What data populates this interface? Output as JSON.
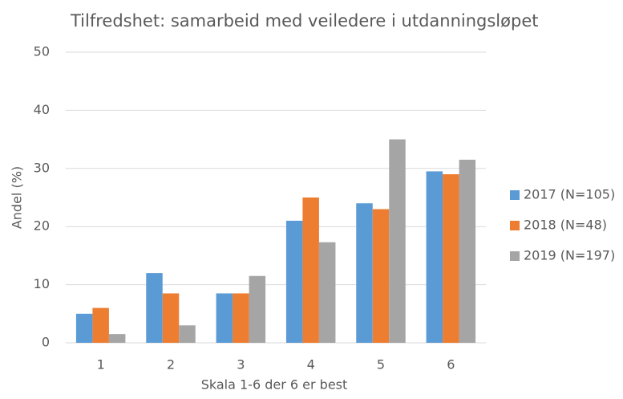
{
  "chart_data": {
    "type": "bar",
    "title": "Tilfredshet: samarbeid med veiledere i utdanningsløpet",
    "x_label": "Skala 1-6 der 6 er best",
    "y_label": "Andel (%)",
    "categories": [
      "1",
      "2",
      "3",
      "4",
      "5",
      "6"
    ],
    "series": [
      {
        "name": "2017 (N=105)",
        "color": "#5b9bd5",
        "values": [
          5,
          12,
          8.5,
          21,
          24,
          29.5
        ]
      },
      {
        "name": "2018 (N=48)",
        "color": "#ed7d31",
        "values": [
          6,
          8.5,
          8.5,
          25,
          23,
          29
        ]
      },
      {
        "name": "2019 (N=197)",
        "color": "#a5a5a5",
        "values": [
          1.5,
          3,
          11.5,
          17.3,
          35,
          31.5
        ]
      }
    ],
    "ylim": [
      0,
      50
    ],
    "yticks": [
      0,
      10,
      20,
      30,
      40,
      50
    ],
    "grid": true,
    "legend": "right"
  }
}
